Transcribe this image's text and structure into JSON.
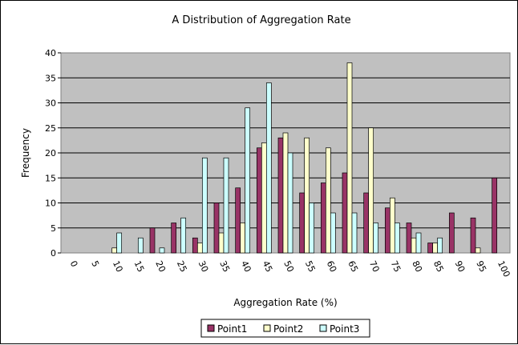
{
  "chart_data": {
    "type": "bar",
    "title": "A Distribution of Aggregation Rate",
    "xlabel": "Aggregation Rate (%)",
    "ylabel": "Frequency",
    "ylim": [
      0,
      40
    ],
    "yticks": [
      0,
      5,
      10,
      15,
      20,
      25,
      30,
      35,
      40
    ],
    "grid": true,
    "legend_position": "bottom",
    "categories": [
      "0",
      "5",
      "10",
      "15",
      "20",
      "25",
      "30",
      "35",
      "40",
      "45",
      "50",
      "55",
      "60",
      "65",
      "70",
      "75",
      "80",
      "85",
      "90",
      "95",
      "100"
    ],
    "series": [
      {
        "name": "Point1",
        "color": "#993366",
        "values": [
          0,
          0,
          0,
          0,
          5,
          6,
          3,
          10,
          13,
          21,
          23,
          12,
          14,
          16,
          12,
          9,
          6,
          2,
          8,
          7,
          15
        ]
      },
      {
        "name": "Point2",
        "color": "#FFFFCC",
        "values": [
          0,
          0,
          1,
          0,
          0,
          0,
          2,
          4,
          6,
          22,
          24,
          23,
          21,
          38,
          25,
          11,
          3,
          2,
          0,
          1,
          0
        ]
      },
      {
        "name": "Point3",
        "color": "#CCFFFF",
        "values": [
          0,
          0,
          4,
          3,
          1,
          7,
          19,
          19,
          29,
          34,
          20,
          10,
          8,
          8,
          6,
          6,
          4,
          3,
          0,
          0,
          0
        ]
      }
    ]
  }
}
